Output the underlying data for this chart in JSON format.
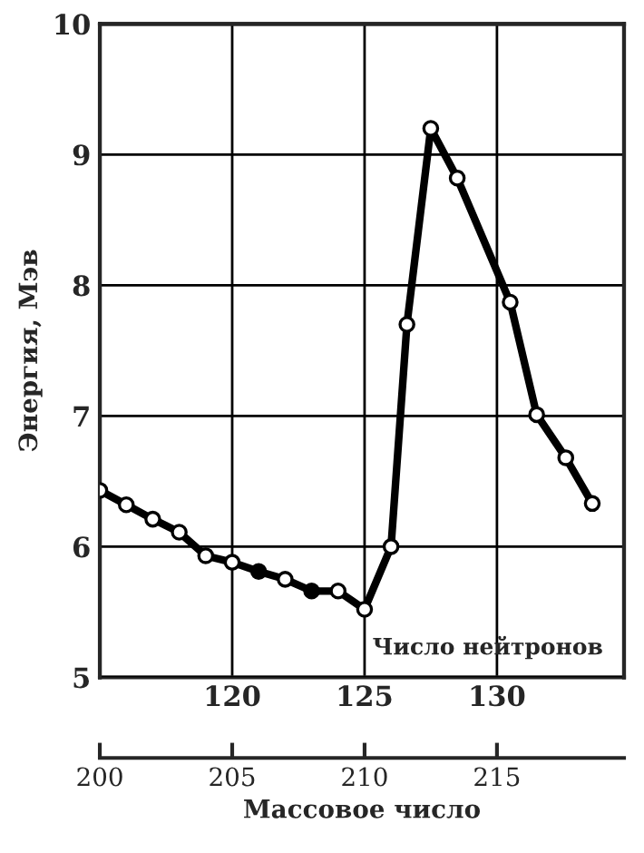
{
  "chart_data": {
    "type": "line",
    "xlabel": "Массовое число",
    "ylabel": "Энергия, Мэв",
    "x2label": "Число нейтронов",
    "x": [
      200,
      201,
      202,
      203,
      204,
      205,
      206,
      207,
      208,
      209,
      210,
      211,
      211.6,
      212.5,
      213.5,
      215.5,
      216.5,
      217.6,
      218.6
    ],
    "series": [
      {
        "color": "#000000",
        "values": [
          6.43,
          6.32,
          6.21,
          6.11,
          5.93,
          5.88,
          5.81,
          5.75,
          5.66,
          5.66,
          5.52,
          6.0,
          7.7,
          9.2,
          8.82,
          7.87,
          7.01,
          6.68,
          6.33
        ],
        "colors": [
          "#ffffff",
          "#ffffff",
          "#ffffff",
          "#ffffff",
          "#ffffff",
          "#ffffff",
          "#000000",
          "#ffffff",
          "#000000",
          "#ffffff",
          "#ffffff",
          "#ffffff",
          "#ffffff",
          "#ffffff",
          "#ffffff",
          "#ffffff",
          "#ffffff",
          "#ffffff",
          "#ffffff"
        ]
      }
    ],
    "xlim": [
      200,
      219.8
    ],
    "xticks": [
      200,
      205,
      210,
      215
    ],
    "x2lim": [
      115,
      134.8
    ],
    "x2ticks": [
      120,
      125,
      130
    ],
    "ylim": [
      5,
      10
    ],
    "yticks": [
      5,
      6,
      7,
      8,
      9,
      10
    ],
    "grid": true,
    "marker": "circle",
    "line_style": "solid"
  }
}
